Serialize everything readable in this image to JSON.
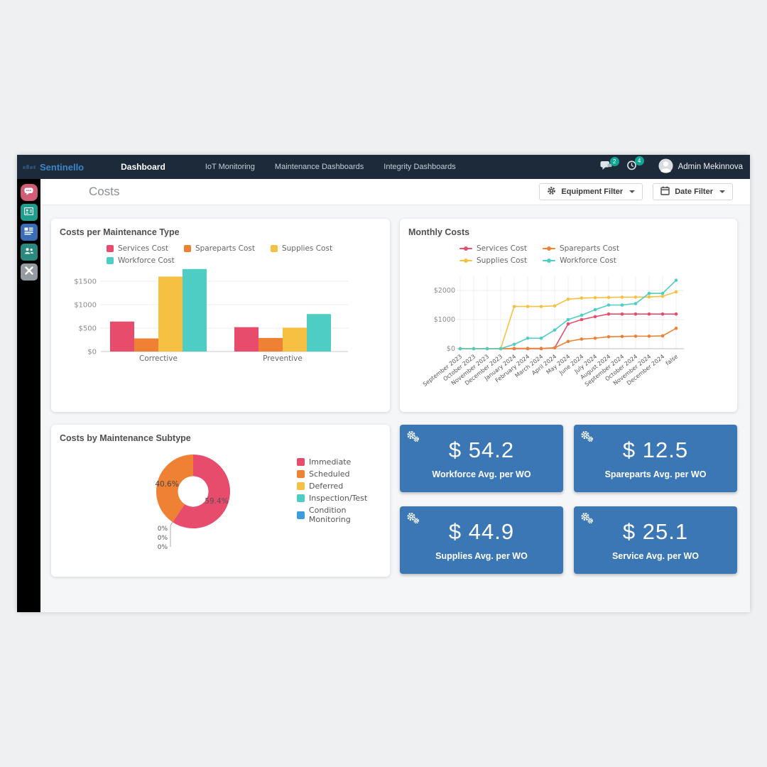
{
  "navbar": {
    "brand": "Sentinello",
    "items": [
      {
        "label": "Dashboard",
        "active": true
      },
      {
        "label": "IoT Monitoring"
      },
      {
        "label": "Maintenance Dashboards"
      },
      {
        "label": "Integrity Dashboards"
      }
    ],
    "chat_badge": "2",
    "history_badge": "4",
    "user_name": "Admin Mekinnova"
  },
  "sidebar": {
    "items": [
      {
        "icon": "chat-icon",
        "color": "#d05c78"
      },
      {
        "icon": "id-card-icon",
        "color": "#1f9e8e"
      },
      {
        "icon": "dashboard-icon",
        "color": "#3a6db5"
      },
      {
        "icon": "users-icon",
        "color": "#2b8a7d"
      },
      {
        "icon": "tools-icon",
        "color": "#959ca1"
      }
    ]
  },
  "page": {
    "title": "Costs",
    "equipment_filter_label": "Equipment Filter",
    "date_filter_label": "Date Filter"
  },
  "panels": {
    "bar_title": "Costs per Maintenance Type",
    "line_title": "Monthly Costs",
    "donut_title": "Costs by Maintenance Subtype"
  },
  "kpis": [
    {
      "value": "$ 54.2",
      "label": "Workforce Avg. per WO"
    },
    {
      "value": "$ 12.5",
      "label": "Spareparts Avg. per WO"
    },
    {
      "value": "$ 44.9",
      "label": "Supplies Avg. per WO"
    },
    {
      "value": "$ 25.1",
      "label": "Service Avg. per WO"
    }
  ],
  "colors": {
    "navbar_bg": "#1c2a3a",
    "brand_blue": "#3d85c8",
    "badge_teal": "#12a594",
    "kpi_blue": "#3c77b5",
    "services": "#e84c6d",
    "spareparts": "#ee8133",
    "supplies": "#f6c142",
    "workforce": "#4ecdc4",
    "condition_blue": "#3b9ddd"
  },
  "chart_data": [
    {
      "type": "bar",
      "title": "Costs per Maintenance Type",
      "categories": [
        "Corrective",
        "Preventive"
      ],
      "series": [
        {
          "name": "Services Cost",
          "color": "#e84c6d",
          "values": [
            640,
            520
          ]
        },
        {
          "name": "Spareparts Cost",
          "color": "#ee8133",
          "values": [
            280,
            290
          ]
        },
        {
          "name": "Supplies Cost",
          "color": "#f6c142",
          "values": [
            1600,
            510
          ]
        },
        {
          "name": "Workforce Cost",
          "color": "#4ecdc4",
          "values": [
            1760,
            800
          ]
        }
      ],
      "yticks": [
        0,
        500,
        1000,
        1500
      ],
      "ylim": [
        0,
        1800
      ],
      "ytick_prefix": "$",
      "grid": true,
      "legend_position": "top"
    },
    {
      "type": "line",
      "title": "Monthly Costs",
      "x": [
        "September 2023",
        "October 2023",
        "November 2023",
        "December 2023",
        "January 2024",
        "February 2024",
        "March 2024",
        "April 2024",
        "May 2024",
        "June 2024",
        "July 2024",
        "August 2024",
        "September 2024",
        "October 2024",
        "November 2024",
        "December 2024",
        "false"
      ],
      "series": [
        {
          "name": "Services Cost",
          "color": "#e84c6d",
          "values": [
            0,
            0,
            0,
            0,
            0,
            0,
            0,
            30,
            850,
            1000,
            1100,
            1190,
            1190,
            1190,
            1190,
            1190,
            1190
          ]
        },
        {
          "name": "Spareparts Cost",
          "color": "#ee8133",
          "values": [
            0,
            0,
            0,
            0,
            10,
            10,
            10,
            30,
            250,
            330,
            360,
            410,
            420,
            430,
            430,
            440,
            700
          ]
        },
        {
          "name": "Supplies Cost",
          "color": "#f6c142",
          "values": [
            0,
            0,
            0,
            0,
            1450,
            1450,
            1450,
            1470,
            1700,
            1740,
            1750,
            1760,
            1770,
            1770,
            1780,
            1800,
            1950
          ]
        },
        {
          "name": "Workforce Cost",
          "color": "#4ecdc4",
          "values": [
            0,
            0,
            0,
            0,
            150,
            360,
            360,
            640,
            1000,
            1150,
            1340,
            1500,
            1500,
            1550,
            1900,
            1900,
            2350
          ]
        }
      ],
      "yticks": [
        0,
        1000,
        2000
      ],
      "ylim": [
        0,
        2600
      ],
      "ytick_prefix": "$",
      "grid": true,
      "legend_position": "top"
    },
    {
      "type": "pie",
      "title": "Costs by Maintenance Subtype",
      "labels": [
        "Immediate",
        "Scheduled",
        "Deferred",
        "Inspection/Test",
        "Condition Monitoring"
      ],
      "values": [
        59.4,
        40.6,
        0,
        0,
        0
      ],
      "display_labels": [
        "59.4%",
        "40.6%",
        "0%",
        "0%",
        "0%"
      ],
      "colors": [
        "#e84c6d",
        "#ee8133",
        "#f6c142",
        "#4ecdc4",
        "#3b9ddd"
      ],
      "donut": true,
      "legend_position": "right"
    }
  ]
}
